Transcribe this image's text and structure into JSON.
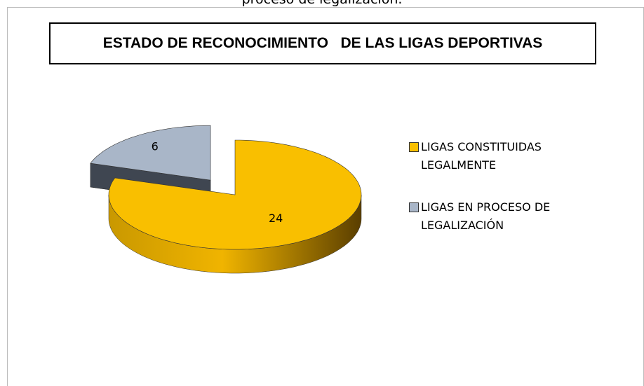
{
  "caption": "proceso de legalización.",
  "chart_data": {
    "type": "pie3d",
    "title": "ESTADO DE RECONOCIMIENTO   DE LAS LIGAS DEPORTIVAS",
    "categories": [
      "LIGAS CONSTITUIDAS LEGALMENTE",
      "LIGAS EN PROCESO DE LEGALIZACIÓN"
    ],
    "values": [
      24,
      6
    ],
    "colors": [
      "#f9bf00",
      "#a9b6c8"
    ],
    "legend": "right"
  }
}
